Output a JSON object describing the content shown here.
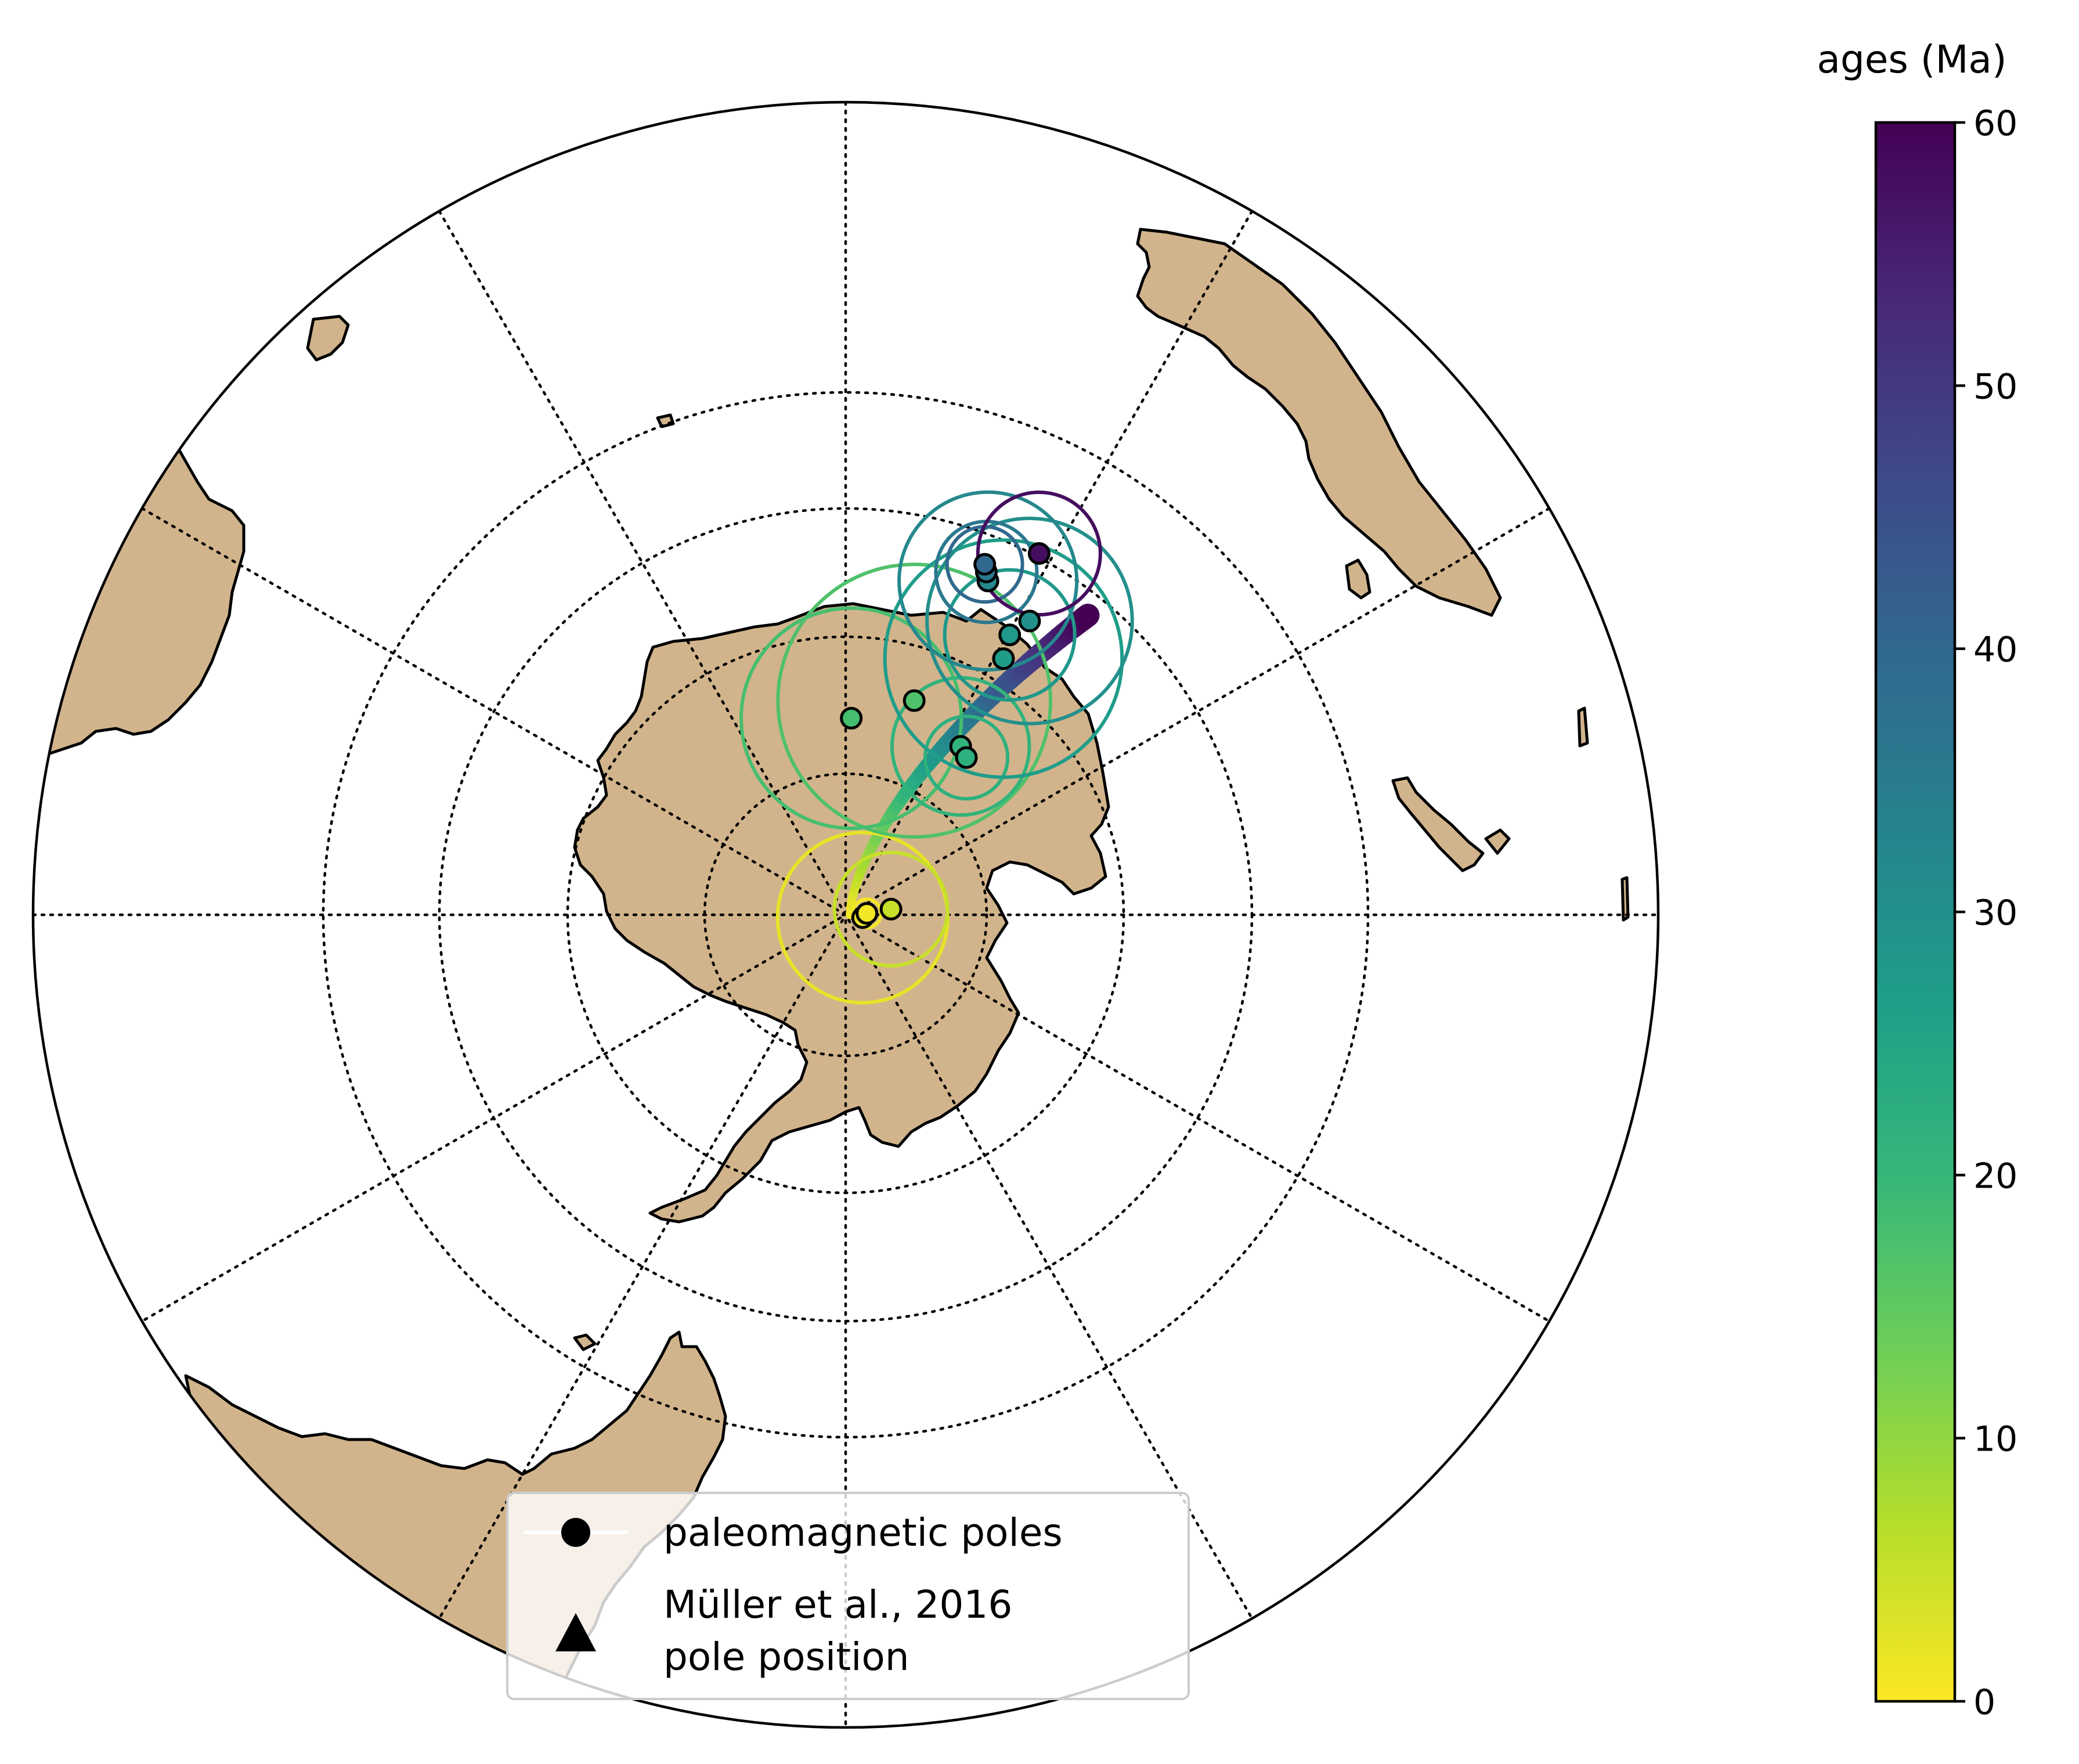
{
  "colorbar": {
    "title": "ages (Ma)",
    "min": 0,
    "max": 60,
    "ticks": [
      "0",
      "10",
      "20",
      "30",
      "40",
      "50",
      "60"
    ],
    "colormap": "viridis",
    "stops": [
      "#fde725",
      "#b5de2b",
      "#6ece58",
      "#35b779",
      "#1f9e89",
      "#26828e",
      "#31688e",
      "#3e4989",
      "#482878",
      "#440154"
    ]
  },
  "legend": {
    "items": [
      {
        "marker": "circle",
        "label": "paleomagnetic poles"
      },
      {
        "marker": "triangle",
        "label_line1": "Müller et al., 2016",
        "label_line2": "pole position"
      }
    ]
  },
  "map": {
    "projection": "orthographic (south polar view)",
    "land_color": "#d2b48c",
    "graticule": "dotted"
  },
  "chart_data": {
    "type": "scatter",
    "color_by": "age (Ma)",
    "poles": [
      {
        "x": 1.2,
        "y": -0.2,
        "age": 2,
        "a95": 6
      },
      {
        "x": 1.5,
        "y": 0.1,
        "age": 1,
        "a95": 1
      },
      {
        "x": 3.2,
        "y": 0.4,
        "age": 5,
        "a95": 4
      },
      {
        "x": 4.9,
        "y": 15.3,
        "age": 17,
        "a95": 10
      },
      {
        "x": 0.4,
        "y": 14.0,
        "age": 18,
        "a95": 8
      },
      {
        "x": 8.2,
        "y": 12.0,
        "age": 21,
        "a95": 5
      },
      {
        "x": 8.6,
        "y": 11.2,
        "age": 22,
        "a95": 3
      },
      {
        "x": 11.4,
        "y": 18.5,
        "age": 27,
        "a95": 9
      },
      {
        "x": 11.9,
        "y": 20.3,
        "age": 28,
        "a95": 5
      },
      {
        "x": 13.4,
        "y": 21.4,
        "age": 30,
        "a95": 8
      },
      {
        "x": 10.4,
        "y": 24.4,
        "age": 32,
        "a95": 7
      },
      {
        "x": 10.3,
        "y": 25.1,
        "age": 36,
        "a95": 4
      },
      {
        "x": 10.2,
        "y": 25.7,
        "age": 40,
        "a95": 3
      },
      {
        "x": 14.3,
        "y": 26.7,
        "age": 58,
        "a95": 5
      }
    ],
    "model_apwp": {
      "source": "Müller et al., 2016",
      "age_range": [
        0,
        60
      ]
    }
  }
}
